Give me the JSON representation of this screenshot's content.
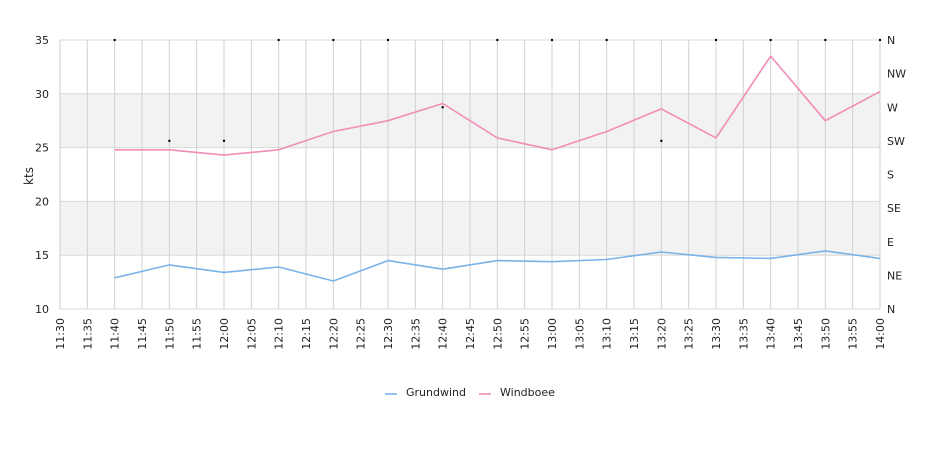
{
  "chart_data": {
    "type": "line",
    "title": "",
    "xlabel": "",
    "ylabel": "kts",
    "ylim": [
      10,
      35
    ],
    "y_ticks": [
      "10",
      "15",
      "20",
      "25",
      "30",
      "35"
    ],
    "right_axis_ticks": [
      "N",
      "NE",
      "E",
      "SE",
      "S",
      "SW",
      "W",
      "NW",
      "N"
    ],
    "x_tick_labels": [
      "11:30",
      "11:35",
      "11:40",
      "11:45",
      "11:50",
      "11:55",
      "12:00",
      "12:05",
      "12:10",
      "12:15",
      "12:20",
      "12:25",
      "12:30",
      "12:35",
      "12:40",
      "12:45",
      "12:50",
      "12:55",
      "13:00",
      "13:05",
      "13:10",
      "13:15",
      "13:20",
      "13:25",
      "13:30",
      "13:35",
      "13:40",
      "13:45",
      "13:50",
      "13:55",
      "14:00"
    ],
    "grid": true,
    "shaded_bands": [
      [
        15,
        20
      ],
      [
        25,
        30
      ]
    ],
    "legend_position": "bottom-center",
    "x": [
      "11:40",
      "11:50",
      "12:00",
      "12:10",
      "12:20",
      "12:30",
      "12:40",
      "12:50",
      "13:00",
      "13:10",
      "13:20",
      "13:30",
      "13:40",
      "13:50",
      "14:00"
    ],
    "series": [
      {
        "name": "Grundwind",
        "color": "#7ab3ea",
        "values": [
          12.9,
          14.1,
          13.4,
          13.9,
          12.6,
          14.5,
          13.7,
          14.5,
          14.4,
          14.6,
          15.3,
          14.8,
          14.7,
          15.4,
          14.7
        ]
      },
      {
        "name": "Windboee",
        "color": "#f28cb8",
        "values": [
          24.8,
          24.8,
          24.3,
          24.8,
          26.5,
          27.5,
          29.1,
          25.9,
          24.8,
          26.5,
          28.6,
          25.9,
          33.5,
          27.5,
          30.2
        ]
      }
    ],
    "direction_markers": {
      "x": [
        "11:40",
        "11:50",
        "12:00",
        "12:10",
        "12:20",
        "12:30",
        "12:40",
        "12:50",
        "13:00",
        "13:10",
        "13:20",
        "13:30",
        "13:40",
        "13:50",
        "14:00"
      ],
      "values": [
        "N",
        "SW",
        "SW",
        "N",
        "N",
        "N",
        "W",
        "N",
        "N",
        "N",
        "SW",
        "N",
        "N",
        "N",
        "N"
      ]
    }
  }
}
